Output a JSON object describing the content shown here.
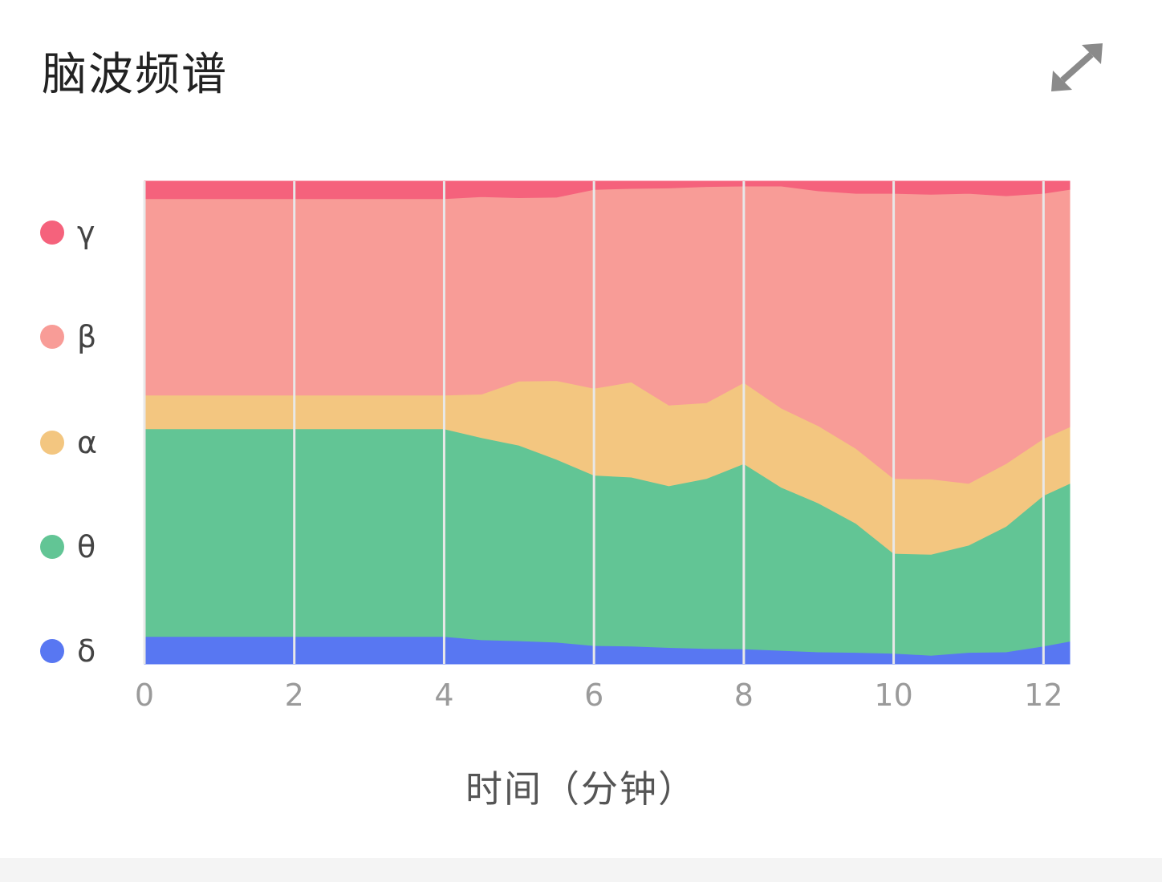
{
  "card": {
    "title": "脑波频谱",
    "expand_icon": "expand-icon"
  },
  "colors": {
    "gamma": "#f5627c",
    "beta": "#f89c97",
    "alpha": "#f3c680",
    "theta": "#62c595",
    "delta": "#5877f2",
    "grid": "#e8e8e8",
    "icon": "#8a8a8a"
  },
  "chart_data": {
    "type": "area",
    "stacked": true,
    "normalized": true,
    "xlabel": "时间（分钟）",
    "xlim": [
      0,
      12.35
    ],
    "ylim": [
      0,
      100
    ],
    "xticks": [
      0,
      2,
      4,
      6,
      8,
      10,
      12
    ],
    "grid": "vertical",
    "legend_position": "left",
    "x": [
      0,
      1,
      2,
      3,
      4,
      4.5,
      5,
      5.5,
      6,
      6.5,
      7,
      7.5,
      8,
      8.5,
      9,
      9.5,
      10,
      10.5,
      11,
      11.5,
      12,
      12.35
    ],
    "series": [
      {
        "name": "δ",
        "color_key": "delta",
        "values": [
          5.7,
          5.7,
          5.7,
          5.7,
          5.7,
          5.0,
          4.8,
          4.5,
          3.8,
          3.7,
          3.4,
          3.2,
          3.1,
          2.8,
          2.5,
          2.4,
          2.2,
          1.8,
          2.4,
          2.5,
          3.7,
          4.7
        ]
      },
      {
        "name": "θ",
        "color_key": "theta",
        "values": [
          43.0,
          43.0,
          43.0,
          43.0,
          43.0,
          41.9,
          40.5,
          37.9,
          35.3,
          35.0,
          33.5,
          35.2,
          38.4,
          33.8,
          30.8,
          26.7,
          20.7,
          20.9,
          22.2,
          26.0,
          31.2,
          32.7
        ]
      },
      {
        "name": "α",
        "color_key": "alpha",
        "values": [
          7.0,
          7.0,
          7.0,
          7.0,
          7.0,
          9.0,
          13.3,
          16.3,
          18.0,
          19.7,
          16.7,
          15.7,
          16.8,
          16.4,
          16.0,
          15.5,
          15.5,
          15.6,
          12.8,
          13.0,
          11.8,
          11.7
        ]
      },
      {
        "name": "β",
        "color_key": "beta",
        "values": [
          40.7,
          40.7,
          40.7,
          40.7,
          40.7,
          40.9,
          38.0,
          38.0,
          41.2,
          40.1,
          45.0,
          44.8,
          40.7,
          46.0,
          48.7,
          52.9,
          59.1,
          59.0,
          60.1,
          55.5,
          50.8,
          49.2
        ]
      },
      {
        "name": "γ",
        "color_key": "gamma",
        "values": [
          3.6,
          3.6,
          3.6,
          3.6,
          3.6,
          3.2,
          3.4,
          3.3,
          1.7,
          1.5,
          1.4,
          1.1,
          1.0,
          1.0,
          2.0,
          2.5,
          2.5,
          2.7,
          2.5,
          3.0,
          2.5,
          1.7
        ]
      }
    ]
  }
}
